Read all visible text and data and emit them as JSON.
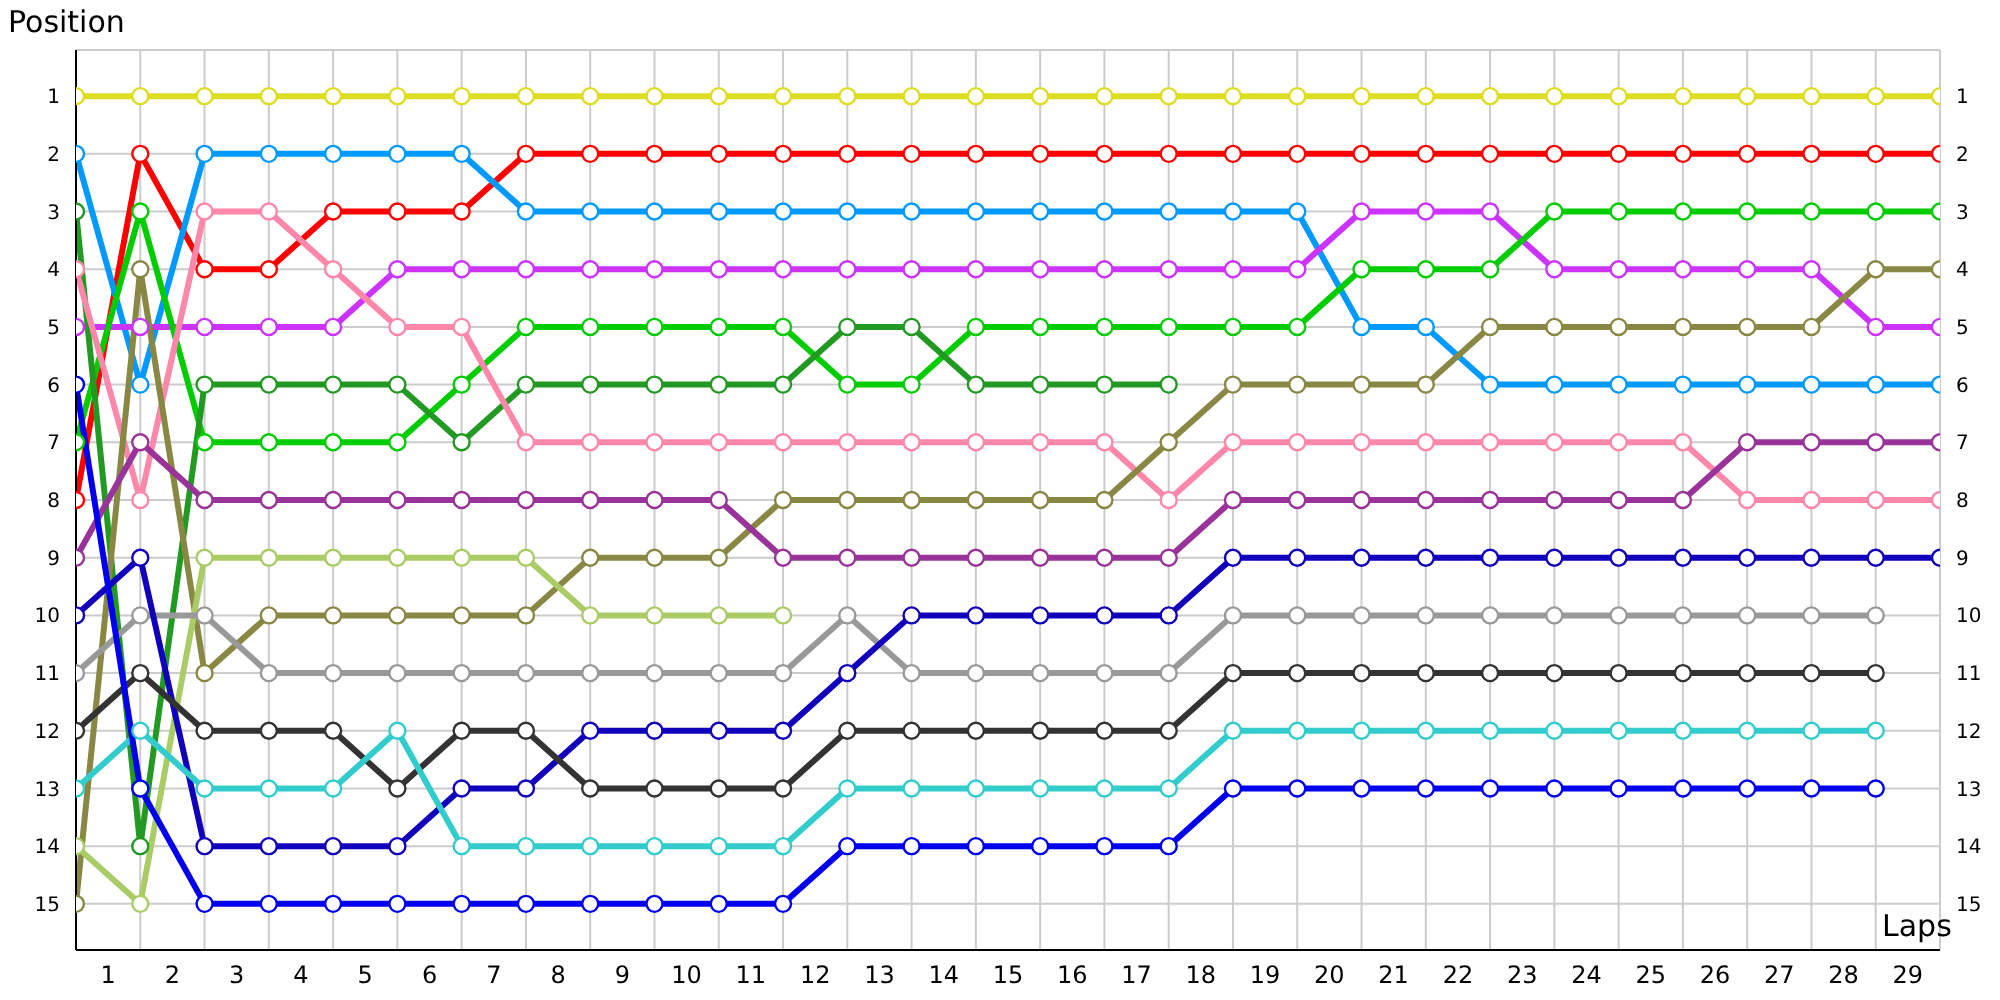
{
  "chart_data": {
    "type": "line",
    "xlabel": "Laps",
    "ylabel": "Position",
    "x": [
      0,
      1,
      2,
      3,
      4,
      5,
      6,
      7,
      8,
      9,
      10,
      11,
      12,
      13,
      14,
      15,
      16,
      17,
      18,
      19,
      20,
      21,
      22,
      23,
      24,
      25,
      26,
      27,
      28,
      29
    ],
    "xlim": [
      0,
      29
    ],
    "xticks": [
      {
        "value": 0.5,
        "label": "1"
      },
      {
        "value": 1,
        "label": null
      },
      {
        "value": 1.5,
        "label": "2"
      },
      {
        "value": 2,
        "label": null
      },
      {
        "value": 2.5,
        "label": "3"
      },
      {
        "value": 3,
        "label": null
      },
      {
        "value": 3.5,
        "label": "4"
      },
      {
        "value": 4,
        "label": null
      },
      {
        "value": 4.5,
        "label": "5"
      },
      {
        "value": 5,
        "label": null
      },
      {
        "value": 5.5,
        "label": "6"
      },
      {
        "value": 6,
        "label": null
      },
      {
        "value": 6.5,
        "label": "7"
      },
      {
        "value": 7,
        "label": null
      },
      {
        "value": 7.5,
        "label": "8"
      },
      {
        "value": 8,
        "label": null
      },
      {
        "value": 8.5,
        "label": "9"
      },
      {
        "value": 9,
        "label": null
      },
      {
        "value": 9.5,
        "label": "10"
      },
      {
        "value": 10,
        "label": null
      },
      {
        "value": 10.5,
        "label": "11"
      },
      {
        "value": 11,
        "label": null
      },
      {
        "value": 11.5,
        "label": "12"
      },
      {
        "value": 12,
        "label": null
      },
      {
        "value": 12.5,
        "label": "13"
      },
      {
        "value": 13,
        "label": null
      },
      {
        "value": 13.5,
        "label": "14"
      },
      {
        "value": 14,
        "label": null
      },
      {
        "value": 14.5,
        "label": "15"
      },
      {
        "value": 15,
        "label": null
      },
      {
        "value": 15.5,
        "label": "16"
      },
      {
        "value": 16,
        "label": null
      },
      {
        "value": 16.5,
        "label": "17"
      },
      {
        "value": 17,
        "label": null
      },
      {
        "value": 17.5,
        "label": "18"
      },
      {
        "value": 18,
        "label": null
      },
      {
        "value": 18.5,
        "label": "19"
      },
      {
        "value": 19,
        "label": null
      },
      {
        "value": 19.5,
        "label": "20"
      },
      {
        "value": 20,
        "label": null
      },
      {
        "value": 20.5,
        "label": "21"
      },
      {
        "value": 21,
        "label": null
      },
      {
        "value": 21.5,
        "label": "22"
      },
      {
        "value": 22,
        "label": null
      },
      {
        "value": 22.5,
        "label": "23"
      },
      {
        "value": 23,
        "label": null
      },
      {
        "value": 23.5,
        "label": "24"
      },
      {
        "value": 24,
        "label": null
      },
      {
        "value": 24.5,
        "label": "25"
      },
      {
        "value": 25,
        "label": null
      },
      {
        "value": 25.5,
        "label": "26"
      },
      {
        "value": 26,
        "label": null
      },
      {
        "value": 26.5,
        "label": "27"
      },
      {
        "value": 27,
        "label": null
      },
      {
        "value": 27.5,
        "label": "28"
      },
      {
        "value": 28,
        "label": null
      },
      {
        "value": 28.5,
        "label": "29"
      },
      {
        "value": 29,
        "label": null
      }
    ],
    "ylim": [
      15.8,
      0.2
    ],
    "yticks": [
      1,
      2,
      3,
      4,
      5,
      6,
      7,
      8,
      9,
      10,
      11,
      12,
      13,
      14,
      15
    ],
    "y2lim": [
      15.8,
      0.2
    ],
    "y2ticks": [
      1,
      2,
      3,
      4,
      5,
      6,
      7,
      8,
      9,
      10,
      11,
      12,
      13,
      14,
      15
    ],
    "grid": true,
    "legend": false,
    "marker": "circle",
    "line_style": "solid",
    "series": [
      {
        "color": "#dddd22",
        "values": [
          1,
          1,
          1,
          1,
          1,
          1,
          1,
          1,
          1,
          1,
          1,
          1,
          1,
          1,
          1,
          1,
          1,
          1,
          1,
          1,
          1,
          1,
          1,
          1,
          1,
          1,
          1,
          1,
          1,
          1
        ]
      },
      {
        "color": "#ff0000",
        "values": [
          8,
          2,
          4,
          4,
          3,
          3,
          3,
          2,
          2,
          2,
          2,
          2,
          2,
          2,
          2,
          2,
          2,
          2,
          2,
          2,
          2,
          2,
          2,
          2,
          2,
          2,
          2,
          2,
          2,
          2
        ]
      },
      {
        "color": "#0099ff",
        "values": [
          2,
          6,
          2,
          2,
          2,
          2,
          2,
          3,
          3,
          3,
          3,
          3,
          3,
          3,
          3,
          3,
          3,
          3,
          3,
          3,
          5,
          5,
          6,
          6,
          6,
          6,
          6,
          6,
          6,
          6
        ]
      },
      {
        "color": "#cc33ff",
        "values": [
          5,
          5,
          5,
          5,
          5,
          4,
          4,
          4,
          4,
          4,
          4,
          4,
          4,
          4,
          4,
          4,
          4,
          4,
          4,
          4,
          3,
          3,
          3,
          4,
          4,
          4,
          4,
          4,
          5,
          5
        ]
      },
      {
        "color": "#00cc00",
        "values": [
          7,
          3,
          7,
          7,
          7,
          7,
          6,
          5,
          5,
          5,
          5,
          5,
          6,
          6,
          5,
          5,
          5,
          5,
          5,
          5,
          4,
          4,
          4,
          3,
          3,
          3,
          3,
          3,
          3,
          3
        ]
      },
      {
        "color": "#229922",
        "values": [
          3,
          14,
          6,
          6,
          6,
          6,
          7,
          6,
          6,
          6,
          6,
          6,
          5,
          5,
          6,
          6,
          6,
          6,
          null,
          null,
          null,
          null,
          null,
          null,
          null,
          null,
          null,
          null,
          null,
          null
        ]
      },
      {
        "color": "#ff88aa",
        "values": [
          4,
          8,
          3,
          3,
          4,
          5,
          5,
          7,
          7,
          7,
          7,
          7,
          7,
          7,
          7,
          7,
          7,
          8,
          7,
          7,
          7,
          7,
          7,
          7,
          7,
          7,
          8,
          8,
          8,
          8
        ]
      },
      {
        "color": "#888844",
        "values": [
          15,
          4,
          11,
          10,
          10,
          10,
          10,
          10,
          9,
          9,
          9,
          8,
          8,
          8,
          8,
          8,
          8,
          7,
          6,
          6,
          6,
          6,
          5,
          5,
          5,
          5,
          5,
          5,
          4,
          4
        ]
      },
      {
        "color": "#993399",
        "values": [
          9,
          7,
          8,
          8,
          8,
          8,
          8,
          8,
          8,
          8,
          8,
          9,
          9,
          9,
          9,
          9,
          9,
          9,
          8,
          8,
          8,
          8,
          8,
          8,
          8,
          8,
          7,
          7,
          7,
          7
        ]
      },
      {
        "color": "#aacc66",
        "values": [
          14,
          15,
          9,
          9,
          9,
          9,
          9,
          9,
          10,
          10,
          10,
          10,
          null,
          null,
          null,
          null,
          null,
          null,
          null,
          null,
          null,
          null,
          null,
          null,
          null,
          null,
          null,
          null,
          null,
          null
        ]
      },
      {
        "color": "#999999",
        "values": [
          11,
          10,
          10,
          11,
          11,
          11,
          11,
          11,
          11,
          11,
          11,
          11,
          10,
          11,
          11,
          11,
          11,
          11,
          10,
          10,
          10,
          10,
          10,
          10,
          10,
          10,
          10,
          10,
          10,
          null
        ]
      },
      {
        "color": "#1100bb",
        "values": [
          10,
          9,
          14,
          14,
          14,
          14,
          13,
          13,
          12,
          12,
          12,
          12,
          11,
          10,
          10,
          10,
          10,
          10,
          9,
          9,
          9,
          9,
          9,
          9,
          9,
          9,
          9,
          9,
          9,
          9
        ]
      },
      {
        "color": "#333333",
        "values": [
          12,
          11,
          12,
          12,
          12,
          13,
          12,
          12,
          13,
          13,
          13,
          13,
          12,
          12,
          12,
          12,
          12,
          12,
          11,
          11,
          11,
          11,
          11,
          11,
          11,
          11,
          11,
          11,
          11,
          null
        ]
      },
      {
        "color": "#33cccc",
        "values": [
          13,
          12,
          13,
          13,
          13,
          12,
          14,
          14,
          14,
          14,
          14,
          14,
          13,
          13,
          13,
          13,
          13,
          13,
          12,
          12,
          12,
          12,
          12,
          12,
          12,
          12,
          12,
          12,
          12,
          null
        ]
      },
      {
        "color": "#0000ee",
        "values": [
          6,
          13,
          15,
          15,
          15,
          15,
          15,
          15,
          15,
          15,
          15,
          15,
          14,
          14,
          14,
          14,
          14,
          14,
          13,
          13,
          13,
          13,
          13,
          13,
          13,
          13,
          13,
          13,
          13,
          null
        ]
      }
    ]
  }
}
